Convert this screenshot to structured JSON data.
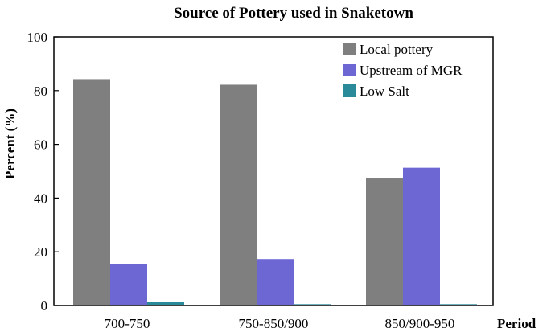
{
  "chart_data": {
    "type": "bar",
    "title": "Source of Pottery used in Snaketown",
    "xlabel": "Period",
    "ylabel": "Percent (%)",
    "ylim": [
      0,
      100
    ],
    "yticks": [
      0,
      20,
      40,
      60,
      80,
      100
    ],
    "categories": [
      "700-750",
      "750-850/900",
      "850/900-950"
    ],
    "series": [
      {
        "name": "Local pottery",
        "color": "#7f7f7f",
        "values": [
          84.3,
          82.2,
          47.3
        ]
      },
      {
        "name": "Upstream of MGR",
        "color": "#6d67d4",
        "values": [
          15.3,
          17.3,
          51.3
        ]
      },
      {
        "name": "Low Salt",
        "color": "#2a8a9a",
        "values": [
          1.2,
          0.5,
          0.5
        ]
      }
    ],
    "legend": "top-right",
    "grid": false
  }
}
